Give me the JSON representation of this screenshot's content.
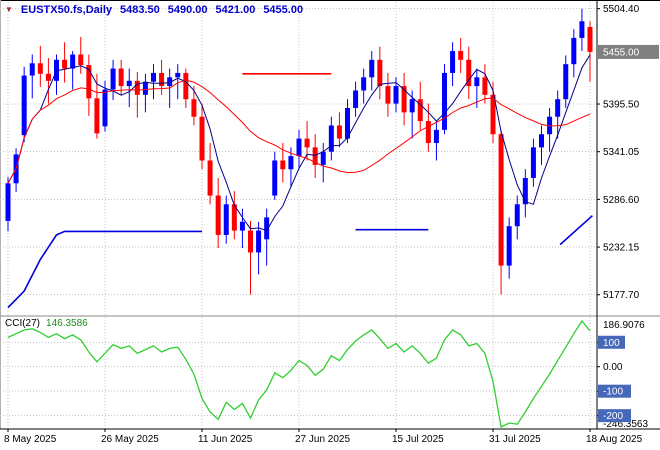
{
  "header": {
    "symbol_period": "EUSTX50.fs,Daily",
    "open": "5483.50",
    "high": "5490.00",
    "low": "5421.00",
    "close": "5455.00"
  },
  "colors": {
    "background": "#ffffff",
    "grid": "#c6c6c6",
    "axis": "#000000",
    "bull": "#0000ff",
    "bear": "#ff0000",
    "ma_fast": "#00008b",
    "ma_slow": "#ff0000",
    "cci_line": "#32cd32",
    "level_box": "#4668b8",
    "price_box": "#808080",
    "support_line": "#0000e0",
    "resistance_line": "#ff0000"
  },
  "price_axis": {
    "gridlines": [
      {
        "value": 5504.4,
        "label": "5504.40"
      },
      {
        "value": 5395.5,
        "label": "5395.50"
      },
      {
        "value": 5341.05,
        "label": "5341.05"
      },
      {
        "value": 5286.6,
        "label": "5286.60"
      },
      {
        "value": 5232.15,
        "label": "5232.15"
      },
      {
        "value": 5177.7,
        "label": "5177.70"
      }
    ],
    "current": {
      "value": 5455.0,
      "label": "5455.00"
    }
  },
  "time_axis": {
    "ticks": [
      {
        "index": 0,
        "label": "8 May 2025"
      },
      {
        "index": 12,
        "label": "26 May 2025"
      },
      {
        "index": 24,
        "label": "11 Jun 2025"
      },
      {
        "index": 36,
        "label": "27 Jun 2025"
      },
      {
        "index": 48,
        "label": "15 Jul 2025"
      },
      {
        "index": 60,
        "label": "31 Jul 2025"
      },
      {
        "index": 72,
        "label": "18 Aug 2025"
      }
    ]
  },
  "indicator": {
    "name_label": "CCI(27)",
    "value_label": "146.3586",
    "max_label": "186.9076",
    "min_label": "-246.3563",
    "levels": [
      {
        "value": 100,
        "label": "100",
        "boxed": true
      },
      {
        "value": 0,
        "label": "0.00",
        "boxed": false
      },
      {
        "value": -100,
        "label": "-100",
        "boxed": true
      },
      {
        "value": -200,
        "label": "-200",
        "boxed": true
      }
    ]
  },
  "chart_data": {
    "type": "candlestick",
    "symbol": "EUSTX50.fs",
    "timeframe": "Daily",
    "title": "EUSTX50.fs,Daily 5483.50 5490.00 5421.00 5455.00",
    "ylim": [
      5158,
      5512
    ],
    "grid": true,
    "dates": [
      "2025-05-08",
      "2025-05-09",
      "2025-05-12",
      "2025-05-13",
      "2025-05-14",
      "2025-05-15",
      "2025-05-16",
      "2025-05-19",
      "2025-05-20",
      "2025-05-21",
      "2025-05-22",
      "2025-05-23",
      "2025-05-26",
      "2025-05-27",
      "2025-05-28",
      "2025-05-29",
      "2025-05-30",
      "2025-06-02",
      "2025-06-03",
      "2025-06-04",
      "2025-06-05",
      "2025-06-06",
      "2025-06-09",
      "2025-06-10",
      "2025-06-11",
      "2025-06-12",
      "2025-06-13",
      "2025-06-16",
      "2025-06-17",
      "2025-06-18",
      "2025-06-19",
      "2025-06-20",
      "2025-06-23",
      "2025-06-24",
      "2025-06-25",
      "2025-06-26",
      "2025-06-27",
      "2025-06-30",
      "2025-07-01",
      "2025-07-02",
      "2025-07-03",
      "2025-07-04",
      "2025-07-07",
      "2025-07-08",
      "2025-07-09",
      "2025-07-10",
      "2025-07-11",
      "2025-07-14",
      "2025-07-15",
      "2025-07-16",
      "2025-07-17",
      "2025-07-18",
      "2025-07-21",
      "2025-07-22",
      "2025-07-23",
      "2025-07-24",
      "2025-07-25",
      "2025-07-28",
      "2025-07-29",
      "2025-07-30",
      "2025-07-31",
      "2025-08-01",
      "2025-08-04",
      "2025-08-05",
      "2025-08-06",
      "2025-08-07",
      "2025-08-08",
      "2025-08-11",
      "2025-08-12",
      "2025-08-13",
      "2025-08-14",
      "2025-08-15",
      "2025-08-18"
    ],
    "ohlc": [
      [
        5262,
        5312,
        5250,
        5305
      ],
      [
        5305,
        5345,
        5295,
        5338
      ],
      [
        5360,
        5438,
        5352,
        5428
      ],
      [
        5428,
        5452,
        5402,
        5442
      ],
      [
        5442,
        5462,
        5415,
        5430
      ],
      [
        5430,
        5448,
        5396,
        5422
      ],
      [
        5422,
        5452,
        5406,
        5446
      ],
      [
        5446,
        5466,
        5420,
        5436
      ],
      [
        5436,
        5456,
        5412,
        5452
      ],
      [
        5452,
        5472,
        5430,
        5440
      ],
      [
        5440,
        5452,
        5382,
        5402
      ],
      [
        5402,
        5430,
        5356,
        5362
      ],
      [
        5370,
        5422,
        5364,
        5412
      ],
      [
        5412,
        5446,
        5400,
        5436
      ],
      [
        5436,
        5446,
        5406,
        5416
      ],
      [
        5416,
        5436,
        5392,
        5422
      ],
      [
        5422,
        5432,
        5380,
        5406
      ],
      [
        5406,
        5430,
        5386,
        5421
      ],
      [
        5421,
        5441,
        5401,
        5431
      ],
      [
        5431,
        5446,
        5406,
        5416
      ],
      [
        5416,
        5436,
        5391,
        5426
      ],
      [
        5426,
        5441,
        5401,
        5431
      ],
      [
        5431,
        5436,
        5391,
        5401
      ],
      [
        5401,
        5416,
        5371,
        5381
      ],
      [
        5381,
        5396,
        5321,
        5331
      ],
      [
        5331,
        5351,
        5281,
        5291
      ],
      [
        5291,
        5311,
        5231,
        5246
      ],
      [
        5246,
        5291,
        5236,
        5281
      ],
      [
        5281,
        5296,
        5241,
        5251
      ],
      [
        5251,
        5276,
        5231,
        5261
      ],
      [
        5251,
        5262,
        5178,
        5226
      ],
      [
        5226,
        5261,
        5201,
        5251
      ],
      [
        5241,
        5276,
        5211,
        5266
      ],
      [
        5291,
        5341,
        5286,
        5331
      ],
      [
        5331,
        5351,
        5306,
        5321
      ],
      [
        5321,
        5346,
        5301,
        5336
      ],
      [
        5336,
        5366,
        5321,
        5356
      ],
      [
        5356,
        5376,
        5331,
        5346
      ],
      [
        5346,
        5361,
        5311,
        5326
      ],
      [
        5326,
        5351,
        5306,
        5341
      ],
      [
        5341,
        5381,
        5331,
        5371
      ],
      [
        5371,
        5386,
        5346,
        5356
      ],
      [
        5356,
        5401,
        5351,
        5391
      ],
      [
        5391,
        5421,
        5381,
        5411
      ],
      [
        5411,
        5436,
        5396,
        5426
      ],
      [
        5426,
        5456,
        5411,
        5446
      ],
      [
        5446,
        5461,
        5401,
        5416
      ],
      [
        5416,
        5431,
        5381,
        5396
      ],
      [
        5396,
        5426,
        5386,
        5416
      ],
      [
        5416,
        5431,
        5371,
        5386
      ],
      [
        5386,
        5411,
        5356,
        5401
      ],
      [
        5401,
        5421,
        5366,
        5376
      ],
      [
        5376,
        5396,
        5341,
        5351
      ],
      [
        5351,
        5376,
        5331,
        5366
      ],
      [
        5366,
        5441,
        5361,
        5431
      ],
      [
        5431,
        5466,
        5416,
        5456
      ],
      [
        5456,
        5471,
        5431,
        5446
      ],
      [
        5446,
        5461,
        5401,
        5416
      ],
      [
        5416,
        5436,
        5391,
        5426
      ],
      [
        5426,
        5441,
        5396,
        5406
      ],
      [
        5406,
        5421,
        5351,
        5361
      ],
      [
        5361,
        5366,
        5178,
        5211
      ],
      [
        5211,
        5266,
        5196,
        5256
      ],
      [
        5256,
        5291,
        5241,
        5281
      ],
      [
        5281,
        5321,
        5266,
        5311
      ],
      [
        5311,
        5356,
        5301,
        5346
      ],
      [
        5346,
        5371,
        5326,
        5361
      ],
      [
        5361,
        5391,
        5341,
        5381
      ],
      [
        5381,
        5411,
        5356,
        5401
      ],
      [
        5401,
        5451,
        5391,
        5441
      ],
      [
        5441,
        5481,
        5426,
        5471
      ],
      [
        5471,
        5504.4,
        5456,
        5490
      ],
      [
        5483.5,
        5490,
        5421,
        5455
      ]
    ],
    "overlays": [
      {
        "name": "ma-fast-line",
        "type": "sma",
        "period": 5,
        "color_key": "ma_fast"
      },
      {
        "name": "ma-slow-line",
        "type": "sma",
        "period": 21,
        "color_key": "ma_slow"
      }
    ],
    "segments": [
      {
        "name": "resistance-segment",
        "color_key": "resistance_line",
        "points": [
          [
            29,
            5430
          ],
          [
            40,
            5430
          ]
        ]
      },
      {
        "name": "support-segment-1",
        "color_key": "support_line",
        "points": [
          [
            0,
            5163
          ],
          [
            2,
            5182
          ],
          [
            4,
            5218
          ],
          [
            6,
            5246
          ],
          [
            7,
            5250
          ],
          [
            24,
            5250
          ]
        ]
      },
      {
        "name": "support-segment-2",
        "color_key": "support_line",
        "points": [
          [
            43,
            5252
          ],
          [
            52,
            5252
          ]
        ]
      },
      {
        "name": "support-segment-3",
        "color_key": "support_line",
        "points": [
          [
            68.3,
            5235
          ],
          [
            72.3,
            5268
          ]
        ]
      }
    ],
    "cci": {
      "period": 27,
      "range": [
        -246.3563,
        186.9076
      ],
      "values": [
        120,
        135,
        150,
        155,
        140,
        120,
        135,
        115,
        130,
        110,
        60,
        20,
        55,
        90,
        75,
        85,
        55,
        70,
        85,
        60,
        75,
        80,
        30,
        -30,
        -130,
        -185,
        -215,
        -145,
        -175,
        -150,
        -210,
        -135,
        -95,
        -25,
        -45,
        -15,
        25,
        5,
        -35,
        -10,
        45,
        25,
        70,
        105,
        130,
        150,
        115,
        75,
        95,
        60,
        85,
        55,
        15,
        35,
        110,
        150,
        130,
        85,
        95,
        55,
        -60,
        -246.3563,
        -230,
        -235,
        -185,
        -130,
        -80,
        -30,
        25,
        80,
        135,
        186.9076,
        146.3586
      ]
    }
  }
}
